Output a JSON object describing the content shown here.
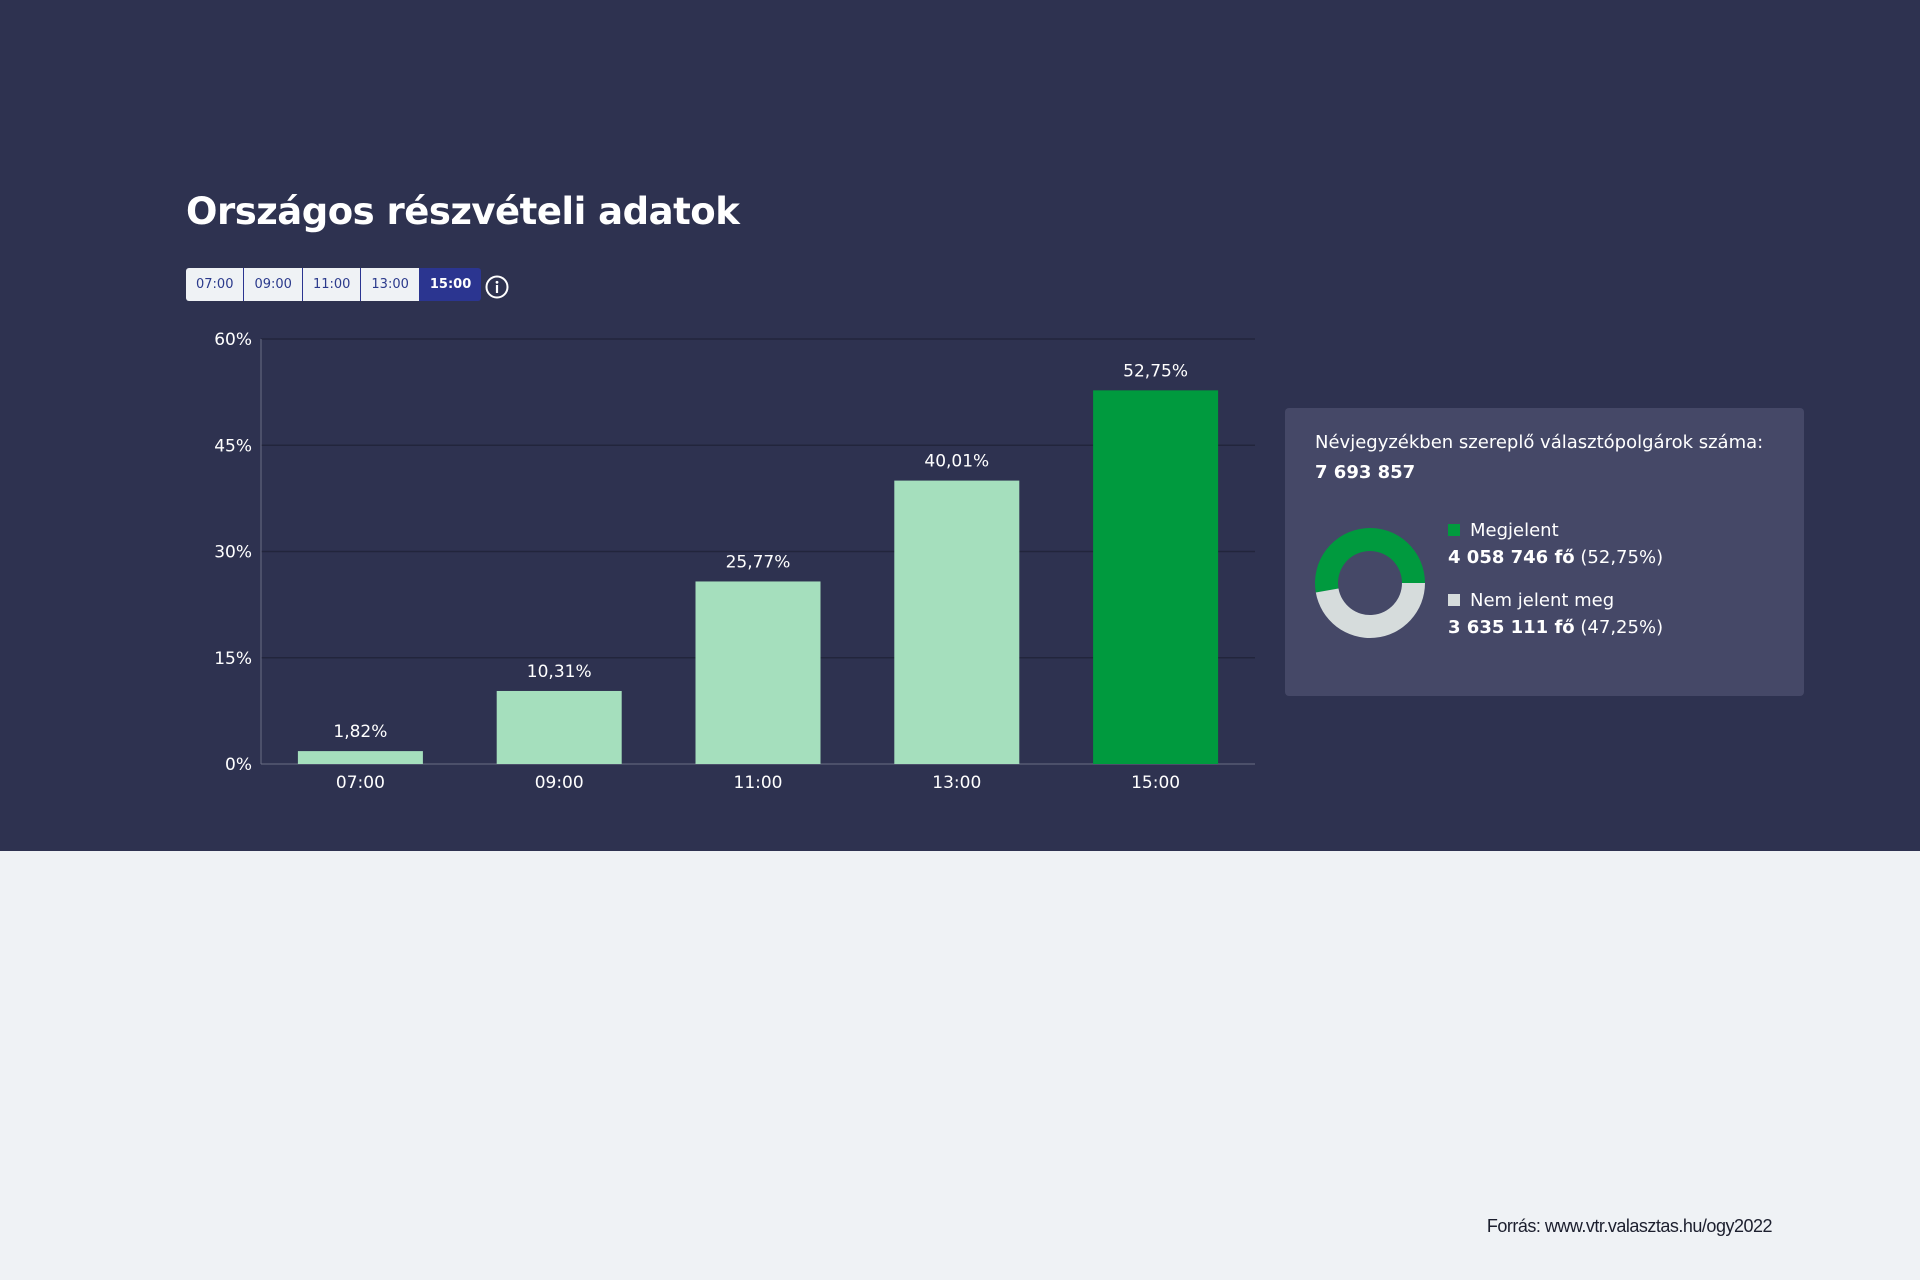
{
  "title": "Országos részvételi adatok",
  "tabs": [
    "07:00",
    "09:00",
    "11:00",
    "13:00",
    "15:00"
  ],
  "active_tab": "15:00",
  "chart_data": {
    "type": "bar",
    "categories": [
      "07:00",
      "09:00",
      "11:00",
      "13:00",
      "15:00"
    ],
    "values": [
      1.82,
      10.31,
      25.77,
      40.01,
      52.75
    ],
    "labels": [
      "1,82%",
      "10,31%",
      "25,77%",
      "40,01%",
      "52,75%"
    ],
    "yticks": [
      "0%",
      "15%",
      "30%",
      "45%",
      "60%"
    ],
    "ylim": [
      0,
      60
    ],
    "highlight": "15:00",
    "colors": {
      "normal": "#a5dfbd",
      "highlight": "#009a3e"
    }
  },
  "panel": {
    "registered_label": "Névjegyzékben szereplő választópolgárok száma:",
    "registered_value": "7 693 857",
    "donut": [
      {
        "name": "Megjelent",
        "count": "4 058 746 fő",
        "pct": "(52,75%)",
        "value": 52.75,
        "color": "#009a3e"
      },
      {
        "name": "Nem jelent meg",
        "count": "3 635 111 fő",
        "pct": "(47,25%)",
        "value": 47.25,
        "color": "#d6dcdc"
      }
    ]
  },
  "source": "Forrás: www.vtr.valasztas.hu/ogy2022"
}
